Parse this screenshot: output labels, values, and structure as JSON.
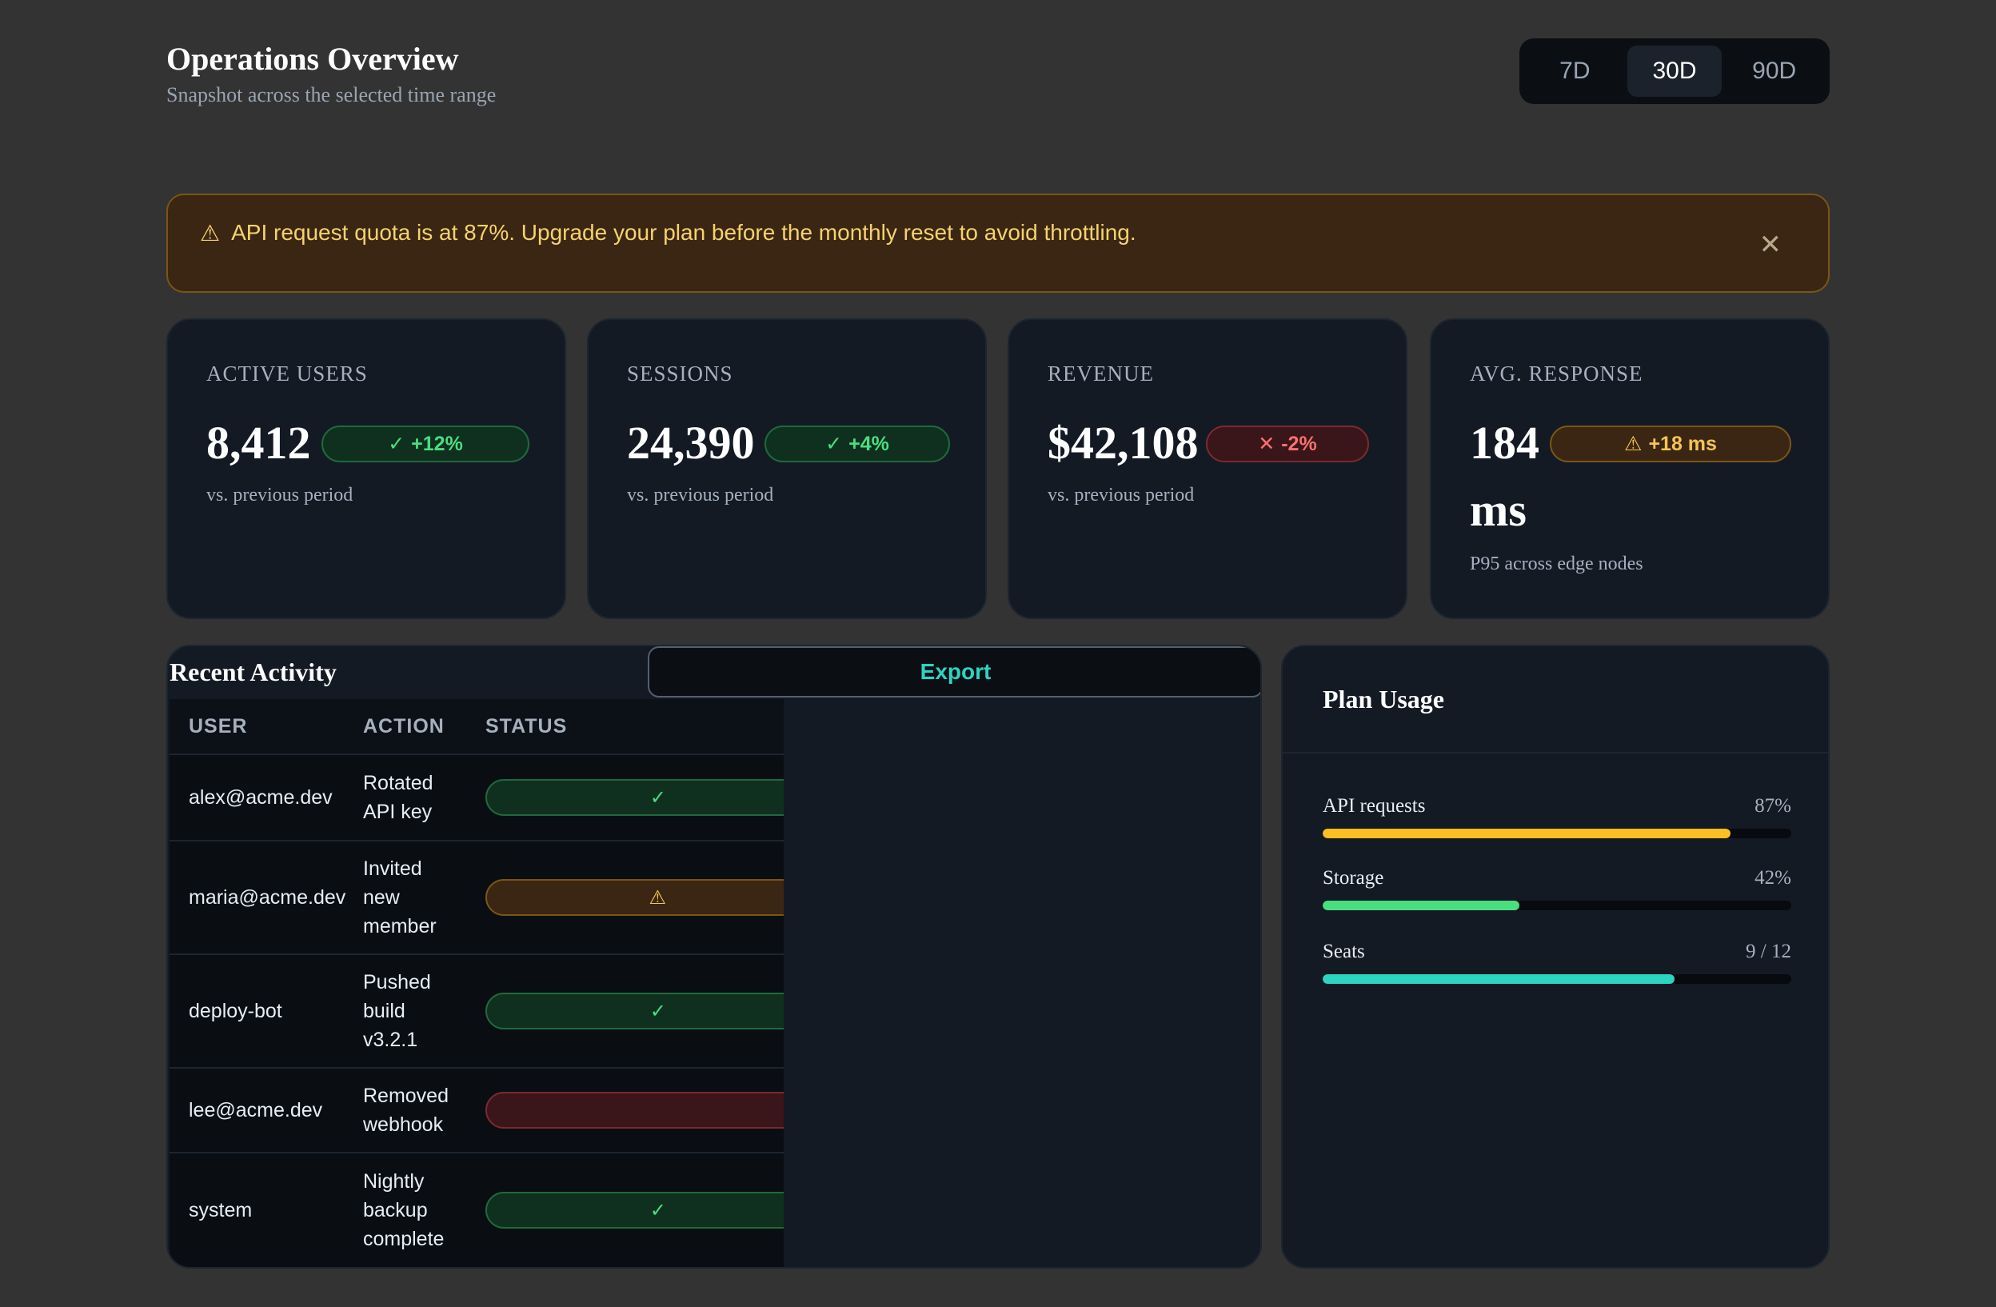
{
  "header": {
    "title": "Operations Overview",
    "subtitle": "Snapshot across the selected time range"
  },
  "range": {
    "options": [
      "7D",
      "30D",
      "90D"
    ],
    "selected": "30D"
  },
  "alert": {
    "icon": "warning-icon",
    "text": "API request quota is at 87%. Upgrade your plan before the monthly reset to avoid throttling.",
    "close_icon": "close-icon"
  },
  "kpis": [
    {
      "label": "ACTIVE USERS",
      "value": "8,412",
      "delta": "+12%",
      "status": "good",
      "icon": "check-icon",
      "note": "vs. previous period"
    },
    {
      "label": "SESSIONS",
      "value": "24,390",
      "delta": "+4%",
      "status": "good",
      "icon": "check-icon",
      "note": "vs. previous period"
    },
    {
      "label": "REVENUE",
      "value": "$42,108",
      "delta": "-2%",
      "status": "bad",
      "icon": "x-icon",
      "note": "vs. previous period"
    },
    {
      "label": "AVG. RESPONSE",
      "value": "184",
      "value_unit": "ms",
      "delta": "+18 ms",
      "status": "warn",
      "icon": "warning-icon",
      "note": "P95 across edge nodes"
    }
  ],
  "activity": {
    "title": "Recent Activity",
    "export_label": "Export",
    "columns": [
      "USER",
      "ACTION",
      "STATUS"
    ],
    "rows": [
      {
        "user": "alex@acme.dev",
        "action_lines": [
          "Rotated",
          "API key"
        ],
        "status": "success",
        "status_icon": "✓"
      },
      {
        "user": "maria@acme.dev",
        "action_lines": [
          "Invited",
          "new",
          "member"
        ],
        "status": "warning",
        "status_icon": "⚠"
      },
      {
        "user": "deploy-bot",
        "action_lines": [
          "Pushed",
          "build",
          "v3.2.1"
        ],
        "status": "success",
        "status_icon": "✓"
      },
      {
        "user": "lee@acme.dev",
        "action_lines": [
          "Removed",
          "webhook"
        ],
        "status": "error",
        "status_icon": ""
      },
      {
        "user": "system",
        "action_lines": [
          "Nightly",
          "backup",
          "complete"
        ],
        "status": "success",
        "status_icon": "✓"
      }
    ]
  },
  "plan": {
    "title": "Plan Usage",
    "items": [
      {
        "label": "API requests",
        "value": "87%",
        "fraction": 0.87,
        "color": "#fbbf24"
      },
      {
        "label": "Storage",
        "value": "42%",
        "fraction": 0.42,
        "color": "#4ade80"
      },
      {
        "label": "Seats",
        "value": "9 / 12",
        "fraction": 0.75,
        "color": "#2dd4bf"
      }
    ]
  }
}
